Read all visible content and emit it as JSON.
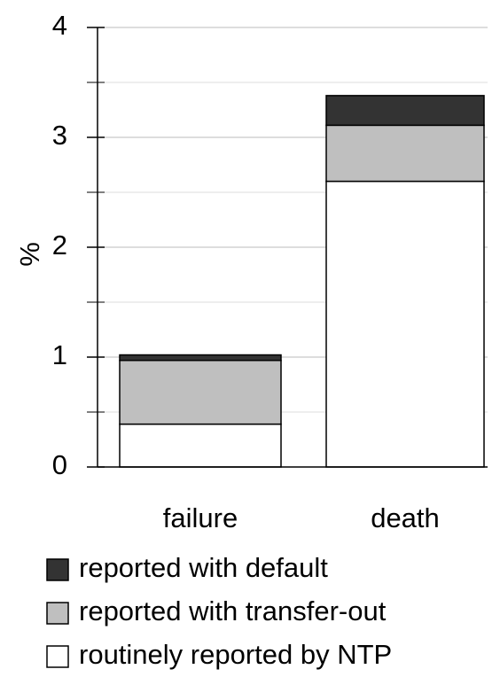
{
  "chart_data": {
    "type": "stacked_bar",
    "y_label": "%",
    "categories": [
      "failure",
      "death"
    ],
    "series": [
      {
        "name": "reported with default",
        "color": "#333333",
        "values": [
          0.05,
          0.27
        ]
      },
      {
        "name": "reported with transfer-out",
        "color": "#bfbfbf",
        "values": [
          0.58,
          0.51
        ]
      },
      {
        "name": "routinely reported by NTP",
        "color": "#ffffff",
        "values": [
          0.39,
          2.6
        ]
      }
    ],
    "ylim": [
      0,
      4
    ],
    "yticks": [
      0,
      1,
      2,
      3,
      4
    ],
    "minor_yticks": [
      0.5,
      1.5,
      2.5,
      3.5
    ],
    "grid": true
  }
}
